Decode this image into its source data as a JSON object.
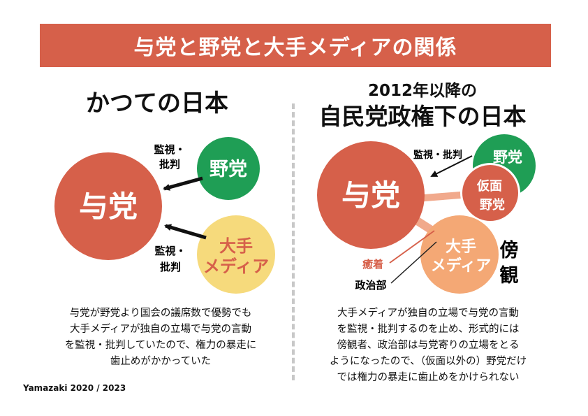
{
  "title": "与党と野党と大手メディアの関係",
  "colors": {
    "banner": "#d6604a",
    "ruling": "#d6604a",
    "opposition": "#1f9e55",
    "media_left": "#f6da7c",
    "media_right": "#f4a875",
    "kamen": "#d6604a",
    "connector": "#f1a98c",
    "divider": "#c8c8c8"
  },
  "left": {
    "heading": "かつての日本",
    "ruling": "与党",
    "opposition": "野党",
    "media_line1": "大手",
    "media_line2": "メディア",
    "label_top_1": "監視・",
    "label_top_2": "批判",
    "label_bottom_1": "監視・",
    "label_bottom_2": "批判",
    "paragraph": [
      "与党が野党より国会の議席数で優勢でも",
      "大手メディアが独自の立場で与党の言動",
      "を監視・批判していたので、権力の暴走に",
      "歯止めがかかっていた"
    ]
  },
  "right": {
    "heading_sub": "2012年以降の",
    "heading_main": "自民党政権下の日本",
    "ruling": "与党",
    "opposition": "野党",
    "kamen_line1": "仮面",
    "kamen_line2": "野党",
    "media_line1": "大手",
    "media_line2": "メディア",
    "label_top": "監視・批判",
    "yuchaku": "癒着",
    "seijibu": "政治部",
    "bokan_1": "傍",
    "bokan_2": "観",
    "paragraph": [
      "大手メディアが独自の立場で与党の言動",
      "を監視・批判するのを止め、形式的には",
      "傍観者、政治部は与党寄りの立場をとる",
      "ようになったので、（仮面以外の）野党だけ",
      "では権力の暴走に歯止めをかけられない"
    ]
  },
  "credit": "Yamazaki 2020 / 2023"
}
